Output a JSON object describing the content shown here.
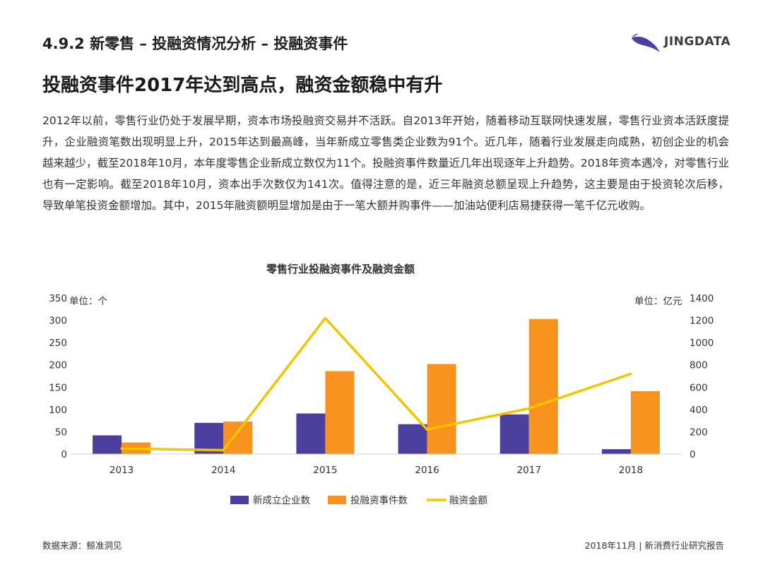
{
  "page": {
    "section_heading": "4.9.2 新零售 – 投融资情况分析 – 投融资事件",
    "brand_name": "JINGDATA",
    "headline": "投融资事件2017年达到高点，融资金额稳中有升",
    "body": "2012年以前，零售行业仍处于发展早期，资本市场投融资交易并不活跃。自2013年开始，随着移动互联网快速发展，零售行业资本活跃度提升，企业融资笔数出现明显上升，2015年达到最高峰，当年新成立零售类企业数为91个。近几年，随着行业发展走向成熟，初创企业的机会越来越少，截至2018年10月，本年度零售企业新成立数仅为11个。投融资事件数量近几年出现逐年上升趋势。2018年资本遇冷，对零售行业也有一定影响。截至2018年10月，资本出手次数仅为141次。值得注意的是，近三年融资总额呈现上升趋势，这主要是由于投资轮次后移，导致单笔投资金额增加。其中，2015年融资额明显增加是由于一笔大额并购事件——加油站便利店易捷获得一笔千亿元收购。",
    "footer_source": "数据来源：鲸准洞见",
    "footer_report": "2018年11月 | 新消费行业研究报告"
  },
  "colors": {
    "bar_company": "#4b3fa0",
    "bar_events": "#f7921e",
    "line_amount": "#f5c400",
    "axis": "#cccccc",
    "brand": "#4b3fa0"
  },
  "chart_data": {
    "type": "bar",
    "title": "零售行业投融资事件及融资金额",
    "categories": [
      "2013",
      "2014",
      "2015",
      "2016",
      "2017",
      "2018"
    ],
    "ylabel_left": "单位：个",
    "ylabel_right": "单位：亿元",
    "ylim_left": [
      0,
      350
    ],
    "yticks_left": [
      0,
      50,
      100,
      150,
      200,
      250,
      300,
      350
    ],
    "ylim_right": [
      0,
      1400
    ],
    "yticks_right": [
      0,
      200,
      400,
      600,
      800,
      1000,
      1200,
      1400
    ],
    "series": [
      {
        "name": "新成立企业数",
        "type": "bar",
        "axis": "left",
        "values": [
          42,
          70,
          91,
          67,
          89,
          11
        ]
      },
      {
        "name": "投融资事件数",
        "type": "bar",
        "axis": "left",
        "values": [
          26,
          73,
          186,
          202,
          303,
          141
        ]
      },
      {
        "name": "融资金额",
        "type": "line",
        "axis": "right",
        "values": [
          50,
          35,
          1220,
          220,
          410,
          720
        ]
      }
    ],
    "legend_position": "bottom-center"
  }
}
